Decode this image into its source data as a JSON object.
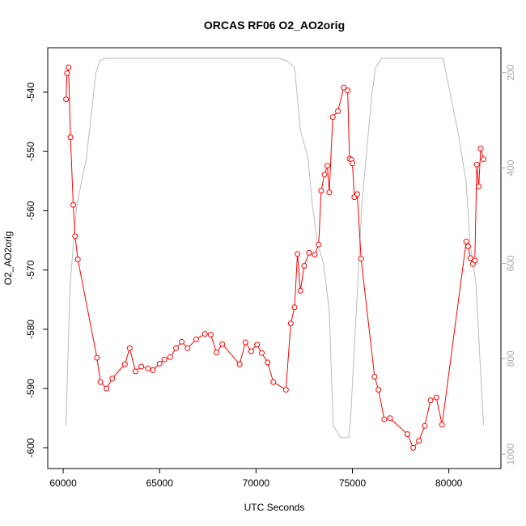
{
  "chart_data": {
    "type": "line",
    "title": "ORCAS RF06 O2_AO2orig",
    "xlabel": "UTC Seconds",
    "ylabel": "O2_AO2orig",
    "xlim": [
      59200,
      82700
    ],
    "ylim": [
      -603.5,
      -532.5
    ],
    "y2lim": [
      1030,
      148
    ],
    "x_ticks": [
      60000,
      65000,
      70000,
      75000,
      80000
    ],
    "y_ticks": [
      -600,
      -590,
      -580,
      -570,
      -560,
      -550,
      -540
    ],
    "y2_ticks": [
      200,
      400,
      600,
      800,
      1000
    ],
    "grid": false,
    "colors": {
      "primary": "#ff0000",
      "secondary": "#bbbbbb",
      "axis": "#000000",
      "right_axis": "#aaaaaa"
    },
    "series": [
      {
        "axis": "left",
        "marker": "circle",
        "points": [
          [
            60150,
            -541.2
          ],
          [
            60200,
            -536.8
          ],
          [
            60280,
            -535.8
          ],
          [
            60380,
            -547.6
          ],
          [
            60520,
            -559.0
          ],
          [
            60620,
            -564.3
          ],
          [
            60760,
            -568.2
          ],
          [
            61750,
            -584.8
          ],
          [
            61930,
            -588.9
          ],
          [
            62250,
            -590.0
          ],
          [
            62550,
            -588.3
          ],
          [
            63200,
            -585.9
          ],
          [
            63450,
            -583.2
          ],
          [
            63750,
            -587.1
          ],
          [
            64050,
            -586.3
          ],
          [
            64400,
            -586.6
          ],
          [
            64650,
            -586.9
          ],
          [
            65000,
            -585.8
          ],
          [
            65250,
            -585.1
          ],
          [
            65550,
            -584.7
          ],
          [
            65850,
            -583.2
          ],
          [
            66150,
            -582.1
          ],
          [
            66450,
            -583.2
          ],
          [
            66900,
            -581.7
          ],
          [
            67350,
            -580.8
          ],
          [
            67650,
            -580.9
          ],
          [
            67950,
            -583.9
          ],
          [
            68250,
            -582.5
          ],
          [
            69150,
            -585.9
          ],
          [
            69450,
            -582.2
          ],
          [
            69750,
            -583.7
          ],
          [
            70050,
            -582.6
          ],
          [
            70300,
            -584.0
          ],
          [
            70600,
            -585.6
          ],
          [
            70900,
            -588.9
          ],
          [
            71550,
            -590.2
          ],
          [
            71800,
            -579.0
          ],
          [
            72000,
            -576.3
          ],
          [
            72150,
            -567.3
          ],
          [
            72300,
            -573.5
          ],
          [
            72500,
            -569.3
          ],
          [
            72750,
            -567.1
          ],
          [
            73050,
            -567.4
          ],
          [
            73250,
            -565.7
          ],
          [
            73380,
            -556.6
          ],
          [
            73550,
            -553.9
          ],
          [
            73700,
            -552.4
          ],
          [
            73800,
            -556.9
          ],
          [
            73980,
            -544.2
          ],
          [
            74250,
            -543.2
          ],
          [
            74550,
            -539.2
          ],
          [
            74750,
            -539.7
          ],
          [
            74850,
            -551.2
          ],
          [
            74950,
            -551.4
          ],
          [
            75000,
            -552.0
          ],
          [
            75100,
            -557.7
          ],
          [
            75250,
            -557.2
          ],
          [
            75450,
            -568.1
          ],
          [
            76150,
            -588.0
          ],
          [
            76350,
            -590.2
          ],
          [
            76650,
            -595.2
          ],
          [
            76950,
            -595.0
          ],
          [
            77850,
            -597.7
          ],
          [
            78150,
            -600.0
          ],
          [
            78450,
            -598.8
          ],
          [
            78750,
            -596.3
          ],
          [
            79050,
            -592.0
          ],
          [
            79350,
            -591.5
          ],
          [
            79650,
            -596.1
          ],
          [
            80900,
            -565.2
          ],
          [
            81000,
            -566.0
          ],
          [
            81120,
            -568.0
          ],
          [
            81250,
            -569.0
          ],
          [
            81350,
            -568.4
          ],
          [
            81450,
            -552.2
          ],
          [
            81550,
            -555.9
          ],
          [
            81650,
            -549.5
          ],
          [
            81800,
            -551.3
          ]
        ]
      },
      {
        "axis": "right",
        "marker": "none",
        "points": [
          [
            60150,
            940
          ],
          [
            60350,
            650
          ],
          [
            60700,
            480
          ],
          [
            61200,
            380
          ],
          [
            61700,
            200
          ],
          [
            61900,
            175
          ],
          [
            62200,
            170
          ],
          [
            65000,
            170
          ],
          [
            70000,
            170
          ],
          [
            71200,
            170
          ],
          [
            71600,
            175
          ],
          [
            72000,
            190
          ],
          [
            72300,
            320
          ],
          [
            72700,
            380
          ],
          [
            72900,
            470
          ],
          [
            73200,
            560
          ],
          [
            73500,
            600
          ],
          [
            73800,
            700
          ],
          [
            74000,
            940
          ],
          [
            74400,
            965
          ],
          [
            74800,
            965
          ],
          [
            74900,
            930
          ],
          [
            75200,
            700
          ],
          [
            75500,
            470
          ],
          [
            76000,
            250
          ],
          [
            76200,
            190
          ],
          [
            76500,
            170
          ],
          [
            78000,
            170
          ],
          [
            79000,
            170
          ],
          [
            79700,
            170
          ],
          [
            80000,
            230
          ],
          [
            80500,
            330
          ],
          [
            80900,
            430
          ],
          [
            81100,
            560
          ],
          [
            81400,
            640
          ],
          [
            81650,
            830
          ],
          [
            81800,
            940
          ]
        ]
      }
    ]
  }
}
